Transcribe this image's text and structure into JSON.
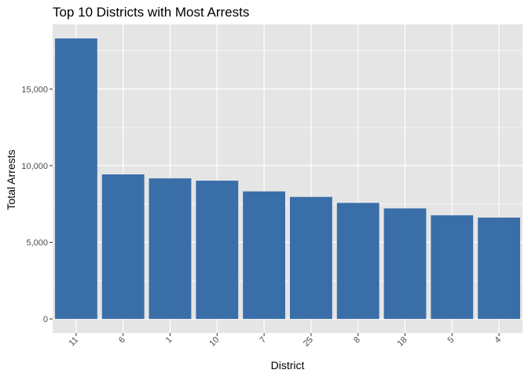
{
  "chart_data": {
    "type": "bar",
    "title": "Top 10 Districts with Most Arrests",
    "xlabel": "District",
    "ylabel": "Total Arrests",
    "categories": [
      "11",
      "6",
      "1",
      "10",
      "7",
      "25",
      "8",
      "18",
      "5",
      "4"
    ],
    "values": [
      18300,
      9430,
      9170,
      9020,
      8320,
      7960,
      7570,
      7210,
      6760,
      6610
    ],
    "yticks": [
      0,
      5000,
      10000,
      15000
    ],
    "ytick_labels": [
      "0",
      "5,000",
      "10,000",
      "15,000"
    ],
    "ylim": [
      -920,
      19220
    ],
    "grid": true,
    "bar_color": "#3A6EA8",
    "panel_color": "#E5E5E5",
    "grid_color": "#FFFFFF"
  }
}
